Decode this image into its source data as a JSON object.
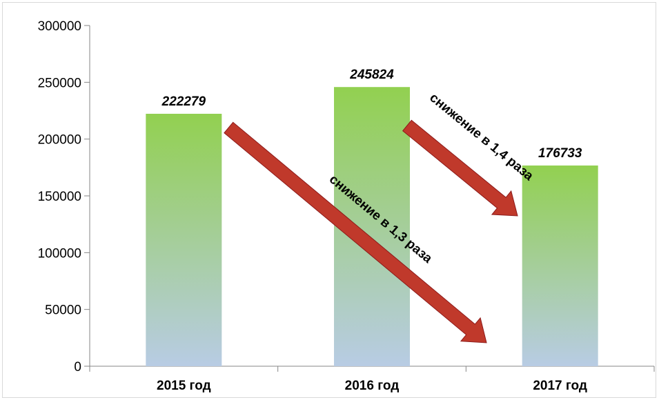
{
  "chart_data": {
    "type": "bar",
    "categories": [
      "2015 год",
      "2016 год",
      "2017 год"
    ],
    "values": [
      222279,
      245824,
      176733
    ],
    "data_labels": [
      "222279",
      "245824",
      "176733"
    ],
    "title": "",
    "xlabel": "",
    "ylabel": "",
    "ylim": [
      0,
      300000
    ],
    "yticks": [
      0,
      50000,
      100000,
      150000,
      200000,
      250000,
      300000
    ],
    "grid": false,
    "legend": "none",
    "bar_gradient": {
      "top": "#92d050",
      "bottom": "#b8cce4"
    },
    "arrow_color": "#c0392b",
    "annotations": [
      {
        "text": "снижение в 1,3 раза",
        "from": "2015 год",
        "to": "2017 год"
      },
      {
        "text": "снижение в 1,4 раза",
        "from": "2016 год",
        "to": "2017 год"
      }
    ]
  }
}
